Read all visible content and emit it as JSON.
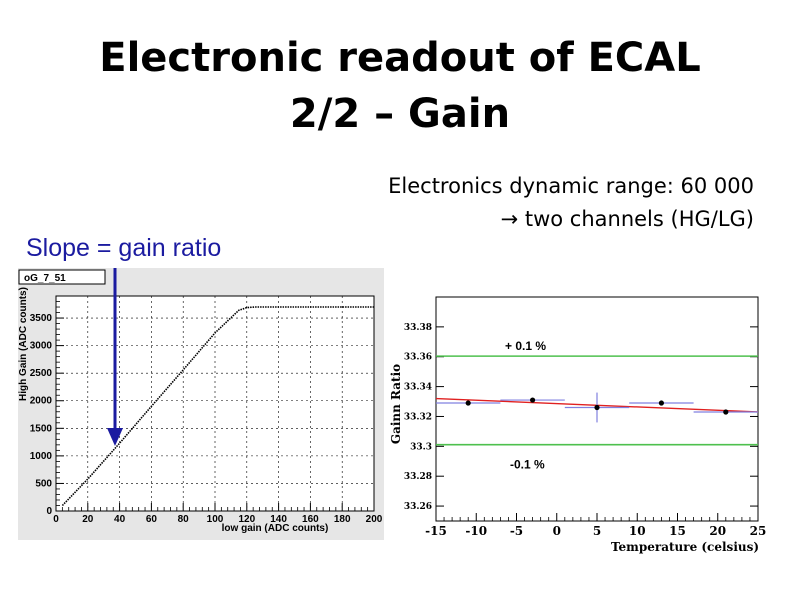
{
  "slide": {
    "title_line1": "Electronic readout of ECAL",
    "title_line2": "2/2 – Gain",
    "info_line1": "Electronics dynamic range: 60 000",
    "info_line2": "→ two channels (HG/LG)",
    "annotation": "Slope = gain ratio",
    "colors": {
      "annotation": "#1b1ba0",
      "fit_line": "#e02020",
      "band_lines": "#4ec04e",
      "error_bars": "#8080e0"
    }
  },
  "chart_data": [
    {
      "type": "line",
      "title": "oG_7_51",
      "xlabel": "low gain (ADC counts)",
      "ylabel": "High Gain (ADC counts)",
      "xlim": [
        0,
        200
      ],
      "ylim": [
        0,
        3900
      ],
      "xticks": [
        0,
        20,
        40,
        60,
        80,
        100,
        120,
        140,
        160,
        180,
        200
      ],
      "yticks": [
        0,
        500,
        1000,
        1500,
        2000,
        2500,
        3000,
        3500
      ],
      "grid": true,
      "series": [
        {
          "x": [
            4,
            20,
            40,
            60,
            80,
            100,
            115,
            120,
            125,
            200
          ],
          "y": [
            100,
            580,
            1230,
            1900,
            2560,
            3230,
            3640,
            3690,
            3700,
            3700
          ]
        }
      ]
    },
    {
      "type": "scatter",
      "xlabel": "Temperature (celsius)",
      "ylabel": "Gainn Ratio",
      "xlim": [
        -15,
        25
      ],
      "ylim": [
        33.25,
        33.4
      ],
      "xticks": [
        -15,
        -10,
        -5,
        0,
        5,
        10,
        15,
        20,
        25
      ],
      "yticks": [
        33.26,
        33.28,
        33.3,
        33.32,
        33.34,
        33.36,
        33.38
      ],
      "ytick_labels": [
        "33.26",
        "33.28",
        "33.3",
        "33.32",
        "33.34",
        "33.36",
        "33.38"
      ],
      "points": [
        {
          "x": -11,
          "y": 33.329,
          "xerr": 4,
          "yerr": 0.0
        },
        {
          "x": -3,
          "y": 33.331,
          "xerr": 4,
          "yerr": 0.0
        },
        {
          "x": 5,
          "y": 33.326,
          "xerr": 4,
          "yerr": 0.01
        },
        {
          "x": 13,
          "y": 33.329,
          "xerr": 4,
          "yerr": 0.0
        },
        {
          "x": 21,
          "y": 33.323,
          "xerr": 4,
          "yerr": 0.0
        }
      ],
      "fit": {
        "x": [
          -15,
          25
        ],
        "y": [
          33.332,
          33.323
        ]
      },
      "bands": [
        {
          "y": 33.3604,
          "label": "+ 0.1 %"
        },
        {
          "y": 33.3011,
          "label": "-0.1 %"
        }
      ]
    }
  ]
}
